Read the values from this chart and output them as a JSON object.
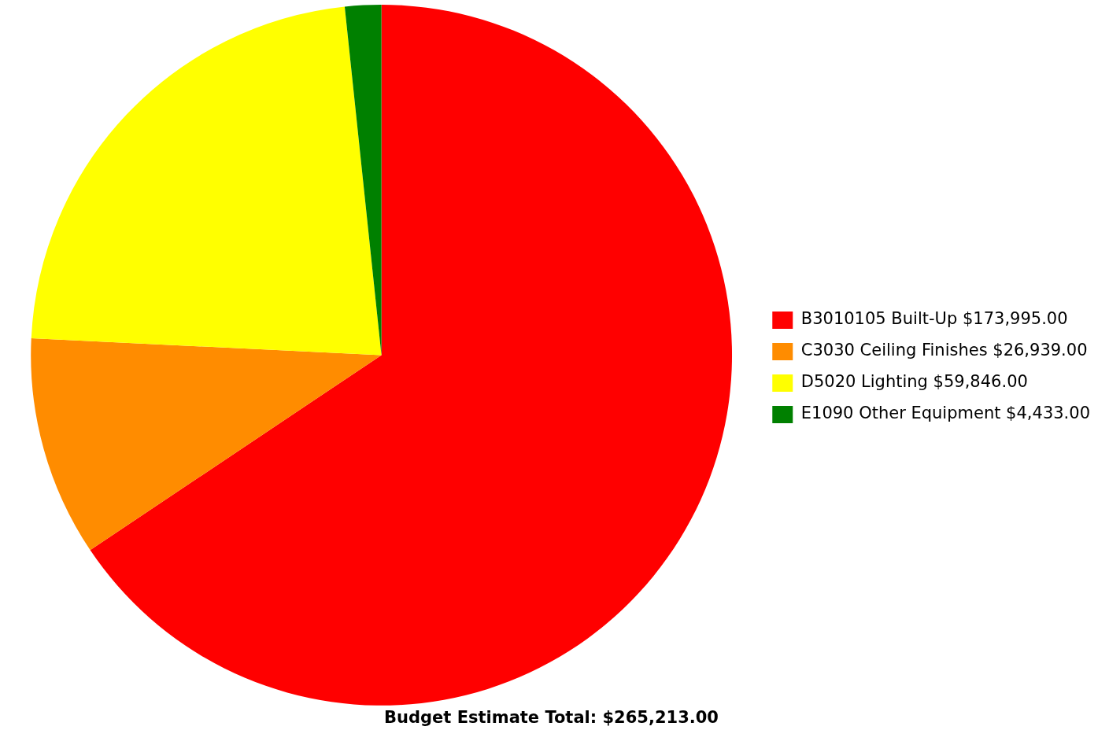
{
  "chart_data": {
    "type": "pie",
    "title": "Budget Estimate Total: $265,213.00",
    "categories": [
      "B3010105 Built-Up",
      "C3030 Ceiling Finishes",
      "D5020 Lighting",
      "E1090 Other Equipment"
    ],
    "values": [
      173995,
      26939,
      59846,
      4433
    ],
    "value_labels": [
      "$173,995.00",
      "$26,939.00",
      "$59,846.00",
      "$4,433.00"
    ],
    "colors": [
      "#ff0000",
      "#ff8c00",
      "#ffff00",
      "#008000"
    ],
    "legend": "right"
  }
}
